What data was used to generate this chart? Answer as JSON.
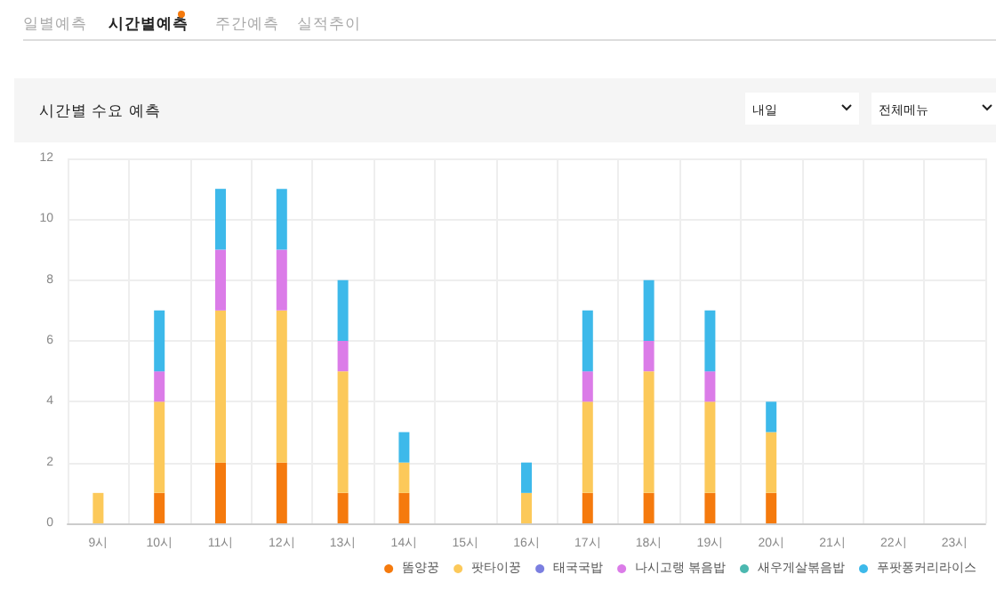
{
  "chart_data": {
    "type": "bar",
    "title": "시간별 수요 예측",
    "annotations": [
      "일별예측",
      "시간별예측",
      "주간예측",
      "실적추이",
      "내일",
      "전체메뉴"
    ],
    "categories": [
      "9시",
      "10시",
      "11시",
      "12시",
      "13시",
      "14시",
      "15시",
      "16시",
      "17시",
      "18시",
      "19시",
      "20시",
      "21시",
      "22시",
      "23시"
    ],
    "stacked": true,
    "series": [
      {
        "name": "똠양꿍",
        "color": "#f57a0d",
        "values": [
          0,
          1,
          2,
          2,
          1,
          1,
          0,
          0,
          1,
          1,
          1,
          1,
          0,
          0,
          0
        ]
      },
      {
        "name": "팟타이꿍",
        "color": "#fcc95a",
        "values": [
          1,
          3,
          5,
          5,
          4,
          1,
          0,
          1,
          3,
          4,
          3,
          2,
          0,
          0,
          0
        ]
      },
      {
        "name": "태국국밥",
        "color": "#7b7fe0",
        "values": [
          0,
          0,
          0,
          0,
          0,
          0,
          0,
          0,
          0,
          0,
          0,
          0,
          0,
          0,
          0
        ]
      },
      {
        "name": "나시고랭 볶음밥",
        "color": "#db7ce8",
        "values": [
          0,
          1,
          2,
          2,
          1,
          0,
          0,
          0,
          1,
          1,
          1,
          0,
          0,
          0,
          0
        ]
      },
      {
        "name": "새우게살볶음밥",
        "color": "#4bb8b0",
        "values": [
          0,
          0,
          0,
          0,
          0,
          0,
          0,
          0,
          0,
          0,
          0,
          0,
          0,
          0,
          0
        ]
      },
      {
        "name": "푸팟퐁커리라이스",
        "color": "#3db9ea",
        "values": [
          0,
          2,
          2,
          2,
          2,
          1,
          0,
          1,
          2,
          2,
          2,
          1,
          0,
          0,
          0
        ]
      }
    ],
    "ylim": [
      0,
      12
    ],
    "yticks": [
      0,
      2,
      4,
      6,
      8,
      10,
      12
    ],
    "grid": true,
    "legend": "bottom right"
  }
}
